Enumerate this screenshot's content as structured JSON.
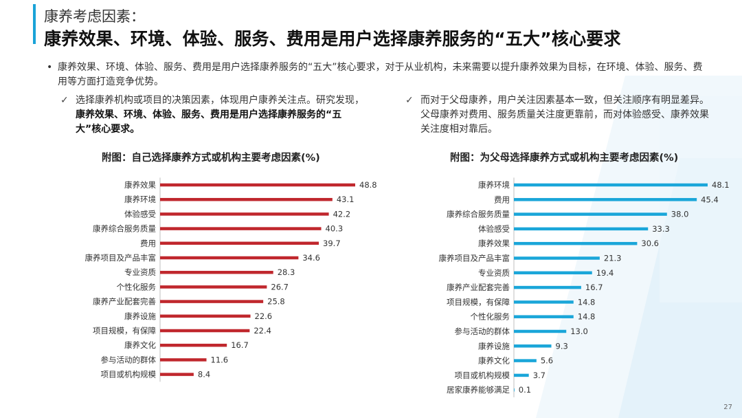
{
  "header": {
    "subtitle": "康养考虑因素：",
    "title": "康养效果、环境、体验、服务、费用是用户选择康养服务的“五大”核心要求"
  },
  "intro": {
    "bullet_symbol": "•",
    "text": "康养效果、环境、体验、服务、费用是用户选择康养服务的“五大”核心要求，对于从业机构，未来需要以提升康养效果为目标，在环境、体验、服务、费用等方面打造竞争优势。"
  },
  "left_note": {
    "check_symbol": "✓",
    "normal": "选择康养机构或项目的决策因素，体现用户康养关注点。研究发现，",
    "bold": "康养效果、环境、体验、服务、费用是用户选择康养服务的“五大”核心要求。"
  },
  "right_note": {
    "check_symbol": "✓",
    "text": "而对于父母康养，用户关注因素基本一致，但关注顺序有明显差异。父母康养对费用、服务质量关注度更靠前，而对体验感受、康养效果关注度相对靠后。"
  },
  "chart_data": [
    {
      "type": "bar",
      "orientation": "horizontal",
      "title": "附图：自己选择康养方式或机构主要考虑因素(%)",
      "color": "#c0272d",
      "xlim": [
        0,
        48.8
      ],
      "categories": [
        "康养效果",
        "康养环境",
        "体验感受",
        "康养综合服务质量",
        "费用",
        "康养项目及产品丰富",
        "专业资质",
        "个性化服务",
        "康养产业配套完善",
        "康养设施",
        "项目规模，有保障",
        "康养文化",
        "参与活动的群体",
        "项目或机构规模"
      ],
      "values": [
        48.8,
        43.1,
        42.2,
        40.3,
        39.7,
        34.6,
        28.3,
        26.7,
        25.8,
        22.6,
        22.4,
        16.7,
        11.6,
        8.4
      ],
      "value_labels": [
        "48.8",
        "43.1",
        "42.2",
        "40.3",
        "39.7",
        "34.6",
        "28.3",
        "26.7",
        "25.8",
        "22.6",
        "22.4",
        "16.7",
        "11.6",
        "8.4"
      ]
    },
    {
      "type": "bar",
      "orientation": "horizontal",
      "title": "附图：为父母选择康养方式或机构主要考虑因素(%)",
      "color": "#1aa6d9",
      "xlim": [
        0,
        48.1
      ],
      "categories": [
        "康养环境",
        "费用",
        "康养综合服务质量",
        "体验感受",
        "康养效果",
        "康养项目及产品丰富",
        "专业资质",
        "康养产业配套完善",
        "项目规模，有保障",
        "个性化服务",
        "参与活动的群体",
        "康养设施",
        "康养文化",
        "项目或机构规模",
        "居家康养能够满足"
      ],
      "values": [
        48.1,
        45.4,
        38.0,
        33.3,
        30.6,
        21.3,
        19.4,
        16.7,
        14.8,
        14.8,
        13.0,
        9.3,
        5.6,
        3.7,
        0.1
      ],
      "value_labels": [
        "48.1",
        "45.4",
        "38.0",
        "33.3",
        "30.6",
        "21.3",
        "19.4",
        "16.7",
        "14.8",
        "14.8",
        "13.0",
        "9.3",
        "5.6",
        "3.7",
        "0.1"
      ]
    }
  ],
  "footer": {
    "page_number": "27"
  }
}
